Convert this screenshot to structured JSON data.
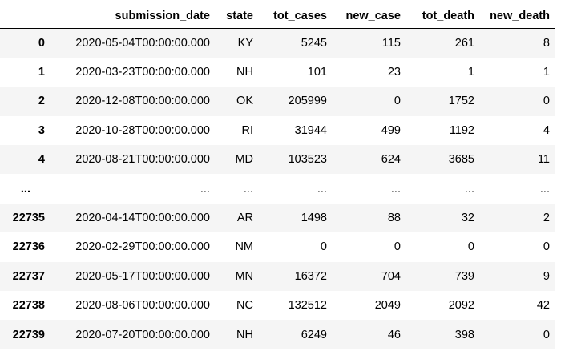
{
  "table": {
    "columns": [
      "submission_date",
      "state",
      "tot_cases",
      "new_case",
      "tot_death",
      "new_death"
    ],
    "rows": [
      {
        "index": "0",
        "cells": [
          "2020-05-04T00:00:00.000",
          "KY",
          "5245",
          "115",
          "261",
          "8"
        ]
      },
      {
        "index": "1",
        "cells": [
          "2020-03-23T00:00:00.000",
          "NH",
          "101",
          "23",
          "1",
          "1"
        ]
      },
      {
        "index": "2",
        "cells": [
          "2020-12-08T00:00:00.000",
          "OK",
          "205999",
          "0",
          "1752",
          "0"
        ]
      },
      {
        "index": "3",
        "cells": [
          "2020-10-28T00:00:00.000",
          "RI",
          "31944",
          "499",
          "1192",
          "4"
        ]
      },
      {
        "index": "4",
        "cells": [
          "2020-08-21T00:00:00.000",
          "MD",
          "103523",
          "624",
          "3685",
          "11"
        ]
      },
      {
        "index": "...",
        "cells": [
          "...",
          "...",
          "...",
          "...",
          "...",
          "..."
        ]
      },
      {
        "index": "22735",
        "cells": [
          "2020-04-14T00:00:00.000",
          "AR",
          "1498",
          "88",
          "32",
          "2"
        ]
      },
      {
        "index": "22736",
        "cells": [
          "2020-02-29T00:00:00.000",
          "NM",
          "0",
          "0",
          "0",
          "0"
        ]
      },
      {
        "index": "22737",
        "cells": [
          "2020-05-17T00:00:00.000",
          "MN",
          "16372",
          "704",
          "739",
          "9"
        ]
      },
      {
        "index": "22738",
        "cells": [
          "2020-08-06T00:00:00.000",
          "NC",
          "132512",
          "2049",
          "2092",
          "42"
        ]
      },
      {
        "index": "22739",
        "cells": [
          "2020-07-20T00:00:00.000",
          "NH",
          "6249",
          "46",
          "398",
          "0"
        ]
      }
    ]
  },
  "colors": {
    "stripe": "#f5f5f5",
    "background": "#ffffff",
    "header_rule": "#000000"
  }
}
